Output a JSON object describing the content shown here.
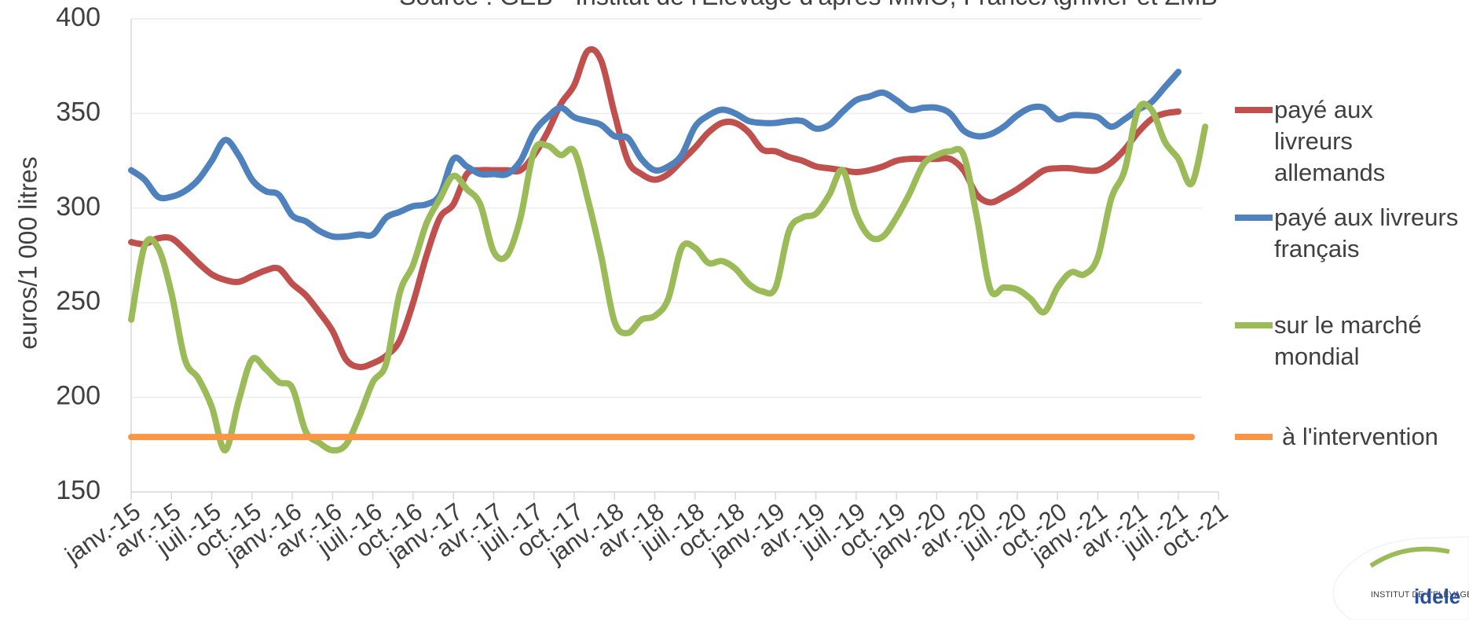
{
  "chart_data": {
    "type": "line",
    "title": "Source : GEB - Institut de l'Elevage d'après MMO, FranceAgriMer et ZMB",
    "y_label": "euros/1 000 litres",
    "logo": {
      "top": "INSTITUT DE L'ELEVAGE",
      "brand": "idele"
    },
    "categories": [
      "janv.-15",
      null,
      null,
      "avr.-15",
      null,
      null,
      "juil.-15",
      null,
      null,
      "oct.-15",
      null,
      null,
      "janv.-16",
      null,
      null,
      "avr.-16",
      null,
      null,
      "juil.-16",
      null,
      null,
      "oct.-16",
      null,
      null,
      "janv.-17",
      null,
      null,
      "avr.-17",
      null,
      null,
      "juil.-17",
      null,
      null,
      "oct.-17",
      null,
      null,
      "janv.-18",
      null,
      null,
      "avr.-18",
      null,
      null,
      "juil.-18",
      null,
      null,
      "oct.-18",
      null,
      null,
      "janv.-19",
      null,
      null,
      "avr.-19",
      null,
      null,
      "juil.-19",
      null,
      null,
      "oct.-19",
      null,
      null,
      "janv.-20",
      null,
      null,
      "avr.-20",
      null,
      null,
      "juil.-20",
      null,
      null,
      "oct.-20",
      null,
      null,
      "janv.-21",
      null,
      null,
      "avr.-21",
      null,
      null,
      "juil.-21",
      null,
      null,
      "oct.-21"
    ],
    "ylim": [
      150,
      400
    ],
    "yticks": [
      150,
      200,
      250,
      300,
      350,
      400
    ],
    "grid": true,
    "series": [
      {
        "name": "payé aux livreurs allemands",
        "color": "#c0504d",
        "values": [
          282,
          281,
          284,
          284,
          278,
          271,
          265,
          262,
          261,
          264,
          267,
          268,
          260,
          254,
          245,
          235,
          220,
          216,
          218,
          222,
          230,
          250,
          275,
          295,
          302,
          318,
          320,
          320,
          320,
          320,
          328,
          340,
          355,
          365,
          383,
          378,
          350,
          325,
          318,
          315,
          318,
          325,
          332,
          340,
          345,
          345,
          340,
          331,
          330,
          327,
          325,
          322,
          321,
          320,
          319,
          320,
          322,
          325,
          326,
          326,
          326,
          326,
          320,
          307,
          303,
          306,
          310,
          315,
          320,
          321,
          321,
          320,
          320,
          324,
          331,
          340,
          347,
          350,
          351,
          null,
          null,
          null
        ]
      },
      {
        "name": "payé aux livreurs français",
        "color": "#4f81bd",
        "values": [
          320,
          315,
          306,
          306,
          309,
          315,
          325,
          336,
          328,
          315,
          309,
          307,
          296,
          293,
          288,
          285,
          285,
          286,
          286,
          295,
          298,
          301,
          302,
          307,
          326,
          322,
          318,
          318,
          318,
          325,
          340,
          348,
          353,
          348,
          346,
          344,
          338,
          337,
          326,
          320,
          322,
          328,
          343,
          349,
          352,
          350,
          346,
          345,
          345,
          346,
          346,
          342,
          344,
          351,
          357,
          359,
          361,
          357,
          352,
          353,
          353,
          350,
          341,
          338,
          339,
          343,
          349,
          353,
          353,
          347,
          349,
          349,
          348,
          343,
          347,
          352,
          356,
          364,
          372,
          null,
          null,
          null
        ]
      },
      {
        "name": "sur le marché mondial",
        "color": "#9bbb59",
        "values": [
          241,
          280,
          279,
          255,
          220,
          210,
          195,
          172,
          198,
          220,
          215,
          208,
          205,
          182,
          176,
          172,
          175,
          190,
          208,
          218,
          255,
          270,
          292,
          305,
          317,
          310,
          302,
          277,
          275,
          295,
          330,
          333,
          328,
          330,
          305,
          275,
          240,
          234,
          241,
          243,
          252,
          279,
          279,
          271,
          272,
          268,
          260,
          256,
          258,
          288,
          295,
          297,
          307,
          320,
          297,
          285,
          285,
          295,
          308,
          323,
          328,
          330,
          328,
          295,
          257,
          258,
          257,
          252,
          245,
          258,
          266,
          265,
          274,
          305,
          320,
          352,
          352,
          335,
          326,
          313,
          343,
          null
        ]
      },
      {
        "name": "à l'intervention",
        "color": "#f79646",
        "values": [
          179,
          179,
          179,
          179,
          179,
          179,
          179,
          179,
          179,
          179,
          179,
          179,
          179,
          179,
          179,
          179,
          179,
          179,
          179,
          179,
          179,
          179,
          179,
          179,
          179,
          179,
          179,
          179,
          179,
          179,
          179,
          179,
          179,
          179,
          179,
          179,
          179,
          179,
          179,
          179,
          179,
          179,
          179,
          179,
          179,
          179,
          179,
          179,
          179,
          179,
          179,
          179,
          179,
          179,
          179,
          179,
          179,
          179,
          179,
          179,
          179,
          179,
          179,
          179,
          179,
          179,
          179,
          179,
          179,
          179,
          179,
          179,
          179,
          179,
          179,
          179,
          179,
          179,
          179,
          179,
          null,
          null
        ]
      }
    ]
  }
}
